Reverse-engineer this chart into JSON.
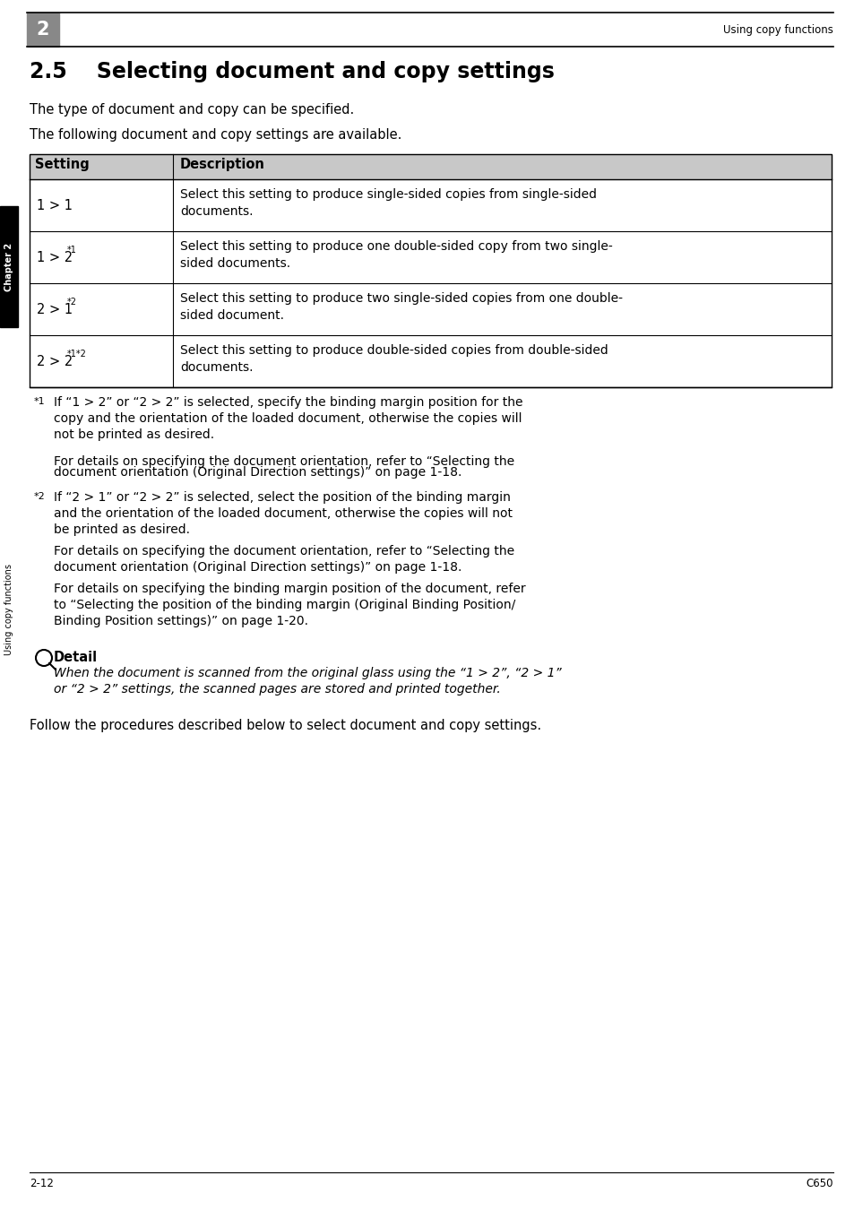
{
  "page_bg": "#ffffff",
  "page_num_left": "2-12",
  "page_num_right": "C650",
  "header_num": "2",
  "header_text": "Using copy functions",
  "chapter_label": "Chapter 2",
  "side_label": "Using copy functions",
  "section_title": "2.5    Selecting document and copy settings",
  "intro1": "The type of document and copy can be specified.",
  "intro2": "The following document and copy settings are available.",
  "table_header_bg": "#c8c8c8",
  "table_col1_header": "Setting",
  "table_col2_header": "Description",
  "table_rows": [
    {
      "setting": "1 > 1",
      "setting_super": "",
      "description": "Select this setting to produce single-sided copies from single-sided\ndocuments."
    },
    {
      "setting": "1 > 2",
      "setting_super": "*1",
      "description": "Select this setting to produce one double-sided copy from two single-\nsided documents."
    },
    {
      "setting": "2 > 1",
      "setting_super": "*2",
      "description": "Select this setting to produce two single-sided copies from one double-\nsided document."
    },
    {
      "setting": "2 > 2",
      "setting_super": "*1*2",
      "description": "Select this setting to produce double-sided copies from double-sided\ndocuments."
    }
  ],
  "footnote1_super": "*1",
  "footnote1_lines": [
    "If “1 > 2” or “2 > 2” is selected, specify the binding margin position for the",
    "copy and the orientation of the loaded document, otherwise the copies will",
    "not be printed as desired.",
    "For details on specifying the document orientation, refer to “Selecting the",
    "document orientation (Original Direction settings)” on page 1-18."
  ],
  "footnote2_super": "*2",
  "footnote2_lines": [
    "If “2 > 1” or “2 > 2” is selected, select the position of the binding margin",
    "and the orientation of the loaded document, otherwise the copies will not",
    "be printed as desired.",
    "For details on specifying the document orientation, refer to “Selecting the",
    "document orientation (Original Direction settings)” on page 1-18.",
    "For details on specifying the binding margin position of the document, refer",
    "to “Selecting the position of the binding margin (Original Binding Position/",
    "Binding Position settings)” on page 1-20."
  ],
  "detail_header": "Detail",
  "detail_lines": [
    "When the document is scanned from the original glass using the “1 > 2”, “2 > 1”",
    "or “2 > 2” settings, the scanned pages are stored and printed together."
  ],
  "follow_text": "Follow the procedures described below to select document and copy settings."
}
